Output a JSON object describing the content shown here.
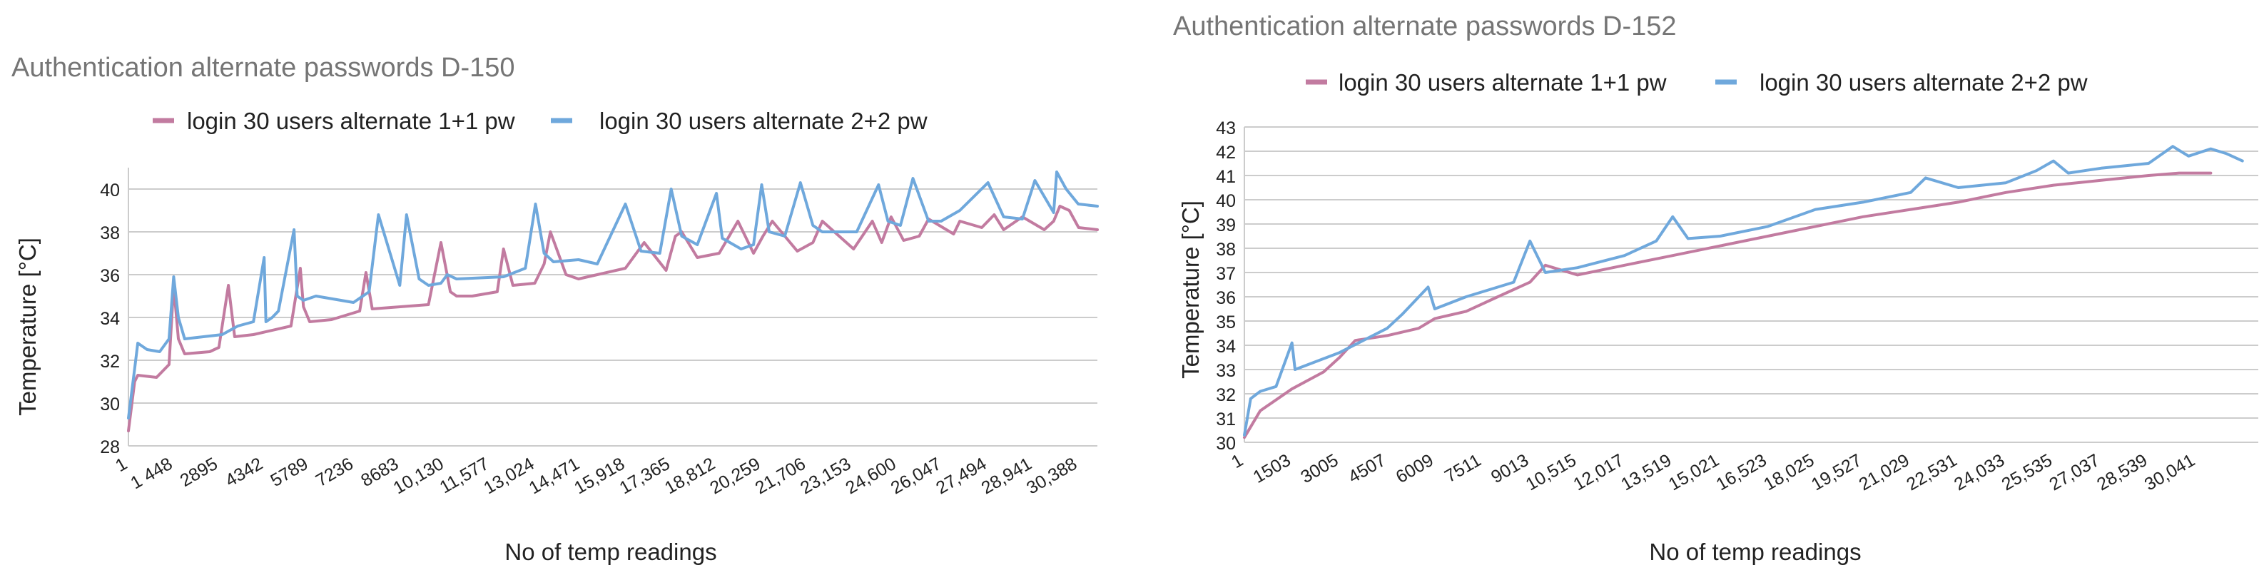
{
  "colors": {
    "series1": "#c27ba0",
    "series2": "#6fa8dc",
    "grid": "#cccccc",
    "title": "#757575",
    "text": "#222222"
  },
  "chart_data": [
    {
      "type": "line",
      "title": "Authentication alternate passwords D-150",
      "xlabel": "No of temp readings",
      "ylabel": "Temperature  [°C]",
      "ylim": [
        28,
        41
      ],
      "ytick_values": [
        28,
        30,
        32,
        34,
        36,
        38,
        40
      ],
      "ytick_labels": [
        "28",
        "30",
        "32",
        "34",
        "36",
        "38",
        "40"
      ],
      "xlim": [
        1,
        31000
      ],
      "xtick_values": [
        1,
        1448,
        2895,
        4342,
        5789,
        7236,
        8683,
        10130,
        11577,
        13024,
        14471,
        15918,
        17365,
        18812,
        20259,
        21706,
        23153,
        24600,
        26047,
        27494,
        28941,
        30388
      ],
      "xtick_labels": [
        "1",
        "1 448",
        "2895",
        "4342",
        "5789",
        "7236",
        "8683",
        "10,130",
        "11,577",
        "13,024",
        "14,471",
        "15,918",
        "17,365",
        "18,812",
        "20,259",
        "21,706",
        "23,153",
        "24,600",
        "26,047",
        "27,494",
        "28,941",
        "30,388"
      ],
      "legend": "top",
      "grid": true,
      "series": [
        {
          "name": "login 30 users alternate 1+1 pw",
          "x": [
            1,
            200,
            300,
            900,
            1300,
            1448,
            1600,
            1800,
            2600,
            2895,
            3200,
            3400,
            4000,
            5200,
            5500,
            5600,
            5800,
            6500,
            7400,
            7600,
            7800,
            9600,
            10000,
            10300,
            10500,
            11000,
            11800,
            12000,
            12300,
            13000,
            13300,
            13500,
            14000,
            14400,
            15000,
            15900,
            16500,
            17200,
            17500,
            17700,
            18200,
            18900,
            19500,
            20000,
            20300,
            20600,
            21400,
            21900,
            22200,
            23200,
            23800,
            24100,
            24400,
            24800,
            25300,
            25600,
            26400,
            26600,
            27300,
            27700,
            28000,
            28600,
            29300,
            29600,
            29800,
            30100,
            30400,
            31000
          ],
          "y": [
            28.7,
            31.0,
            31.3,
            31.2,
            31.8,
            35.5,
            33.0,
            32.3,
            32.4,
            32.6,
            35.5,
            33.1,
            33.2,
            33.6,
            36.3,
            34.5,
            33.8,
            33.9,
            34.3,
            36.1,
            34.4,
            34.6,
            37.5,
            35.2,
            35.0,
            35.0,
            35.2,
            37.2,
            35.5,
            35.6,
            36.5,
            38.0,
            36.0,
            35.8,
            36.0,
            36.3,
            37.5,
            36.2,
            37.8,
            38.0,
            36.8,
            37.0,
            38.5,
            37.0,
            37.8,
            38.5,
            37.1,
            37.5,
            38.5,
            37.2,
            38.5,
            37.5,
            38.7,
            37.6,
            37.8,
            38.6,
            37.9,
            38.5,
            38.2,
            38.8,
            38.1,
            38.7,
            38.1,
            38.5,
            39.2,
            39.0,
            38.2,
            38.1
          ]
        },
        {
          "name": "login 30 users alternate 2+2 pw",
          "x": [
            1,
            200,
            300,
            600,
            1000,
            1300,
            1448,
            1600,
            1800,
            3000,
            3500,
            4000,
            4342,
            4400,
            4600,
            4800,
            5300,
            5400,
            5600,
            6000,
            7200,
            7700,
            8000,
            8683,
            8900,
            9300,
            9600,
            10000,
            10200,
            10500,
            12000,
            12700,
            13024,
            13300,
            13600,
            14400,
            15000,
            15900,
            16400,
            17000,
            17365,
            17700,
            18200,
            18812,
            19000,
            19600,
            20000,
            20259,
            20500,
            21000,
            21500,
            21900,
            22200,
            23300,
            24000,
            24300,
            24700,
            25100,
            25600,
            26000,
            26600,
            27500,
            28000,
            28600,
            29000,
            29600,
            29700,
            30000,
            30388,
            31000
          ],
          "y": [
            29.3,
            31.6,
            32.8,
            32.5,
            32.4,
            33.0,
            35.9,
            34.0,
            33.0,
            33.2,
            33.6,
            33.8,
            36.8,
            33.8,
            34.0,
            34.3,
            38.1,
            35.0,
            34.8,
            35.0,
            34.7,
            35.2,
            38.8,
            35.5,
            38.8,
            35.8,
            35.5,
            35.6,
            36.0,
            35.8,
            35.9,
            36.3,
            39.3,
            37.0,
            36.6,
            36.7,
            36.5,
            39.3,
            37.1,
            37.0,
            40.0,
            37.8,
            37.4,
            39.8,
            37.7,
            37.2,
            37.4,
            40.2,
            38.0,
            37.8,
            40.3,
            38.3,
            38.0,
            38.0,
            40.2,
            38.5,
            38.3,
            40.5,
            38.5,
            38.5,
            39.0,
            40.3,
            38.7,
            38.6,
            40.4,
            38.9,
            40.8,
            40.0,
            39.3,
            39.2
          ]
        }
      ]
    },
    {
      "type": "line",
      "title": "Authentication alternate passwords D-152",
      "xlabel": "No of temp readings",
      "ylabel": "Temperature  [°C]",
      "ylim": [
        30,
        43
      ],
      "ytick_values": [
        30,
        31,
        32,
        33,
        34,
        35,
        36,
        37,
        38,
        39,
        40,
        41,
        42,
        43
      ],
      "ytick_labels": [
        "30",
        "31",
        "32",
        "33",
        "34",
        "35",
        "36",
        "37",
        "38",
        "39",
        "40",
        "41",
        "42",
        "43"
      ],
      "xlim": [
        1,
        32000
      ],
      "xtick_values": [
        1,
        1503,
        3005,
        4507,
        6009,
        7511,
        9013,
        10515,
        12017,
        13519,
        15021,
        16523,
        18025,
        19527,
        21029,
        22531,
        24033,
        25535,
        27037,
        28539,
        30041
      ],
      "xtick_labels": [
        "1",
        "1503",
        "3005",
        "4507",
        "6009",
        "7511",
        "9013",
        "10,515",
        "12,017",
        "13,519",
        "15,021",
        "16,523",
        "18,025",
        "19,527",
        "21,029",
        "22,531",
        "24,033",
        "25,535",
        "27,037",
        "28,539",
        "30,041"
      ],
      "legend": "top",
      "grid": true,
      "series": [
        {
          "name": "login 30 users alternate 1+1 pw",
          "x": [
            1,
            500,
            1500,
            2500,
            3005,
            3500,
            4507,
            5500,
            6009,
            7000,
            8000,
            9013,
            9500,
            10515,
            12000,
            13519,
            15021,
            16523,
            18025,
            19527,
            21029,
            22531,
            24033,
            25535,
            27037,
            28539,
            29500,
            30500
          ],
          "y": [
            30.2,
            31.3,
            32.2,
            32.9,
            33.5,
            34.2,
            34.4,
            34.7,
            35.1,
            35.4,
            36.0,
            36.6,
            37.3,
            36.9,
            37.3,
            37.7,
            38.1,
            38.5,
            38.9,
            39.3,
            39.6,
            39.9,
            40.3,
            40.6,
            40.8,
            41.0,
            41.1,
            41.1
          ]
        },
        {
          "name": "login 30 users alternate 2+2 pw",
          "x": [
            1,
            200,
            500,
            1000,
            1503,
            1600,
            1800,
            3005,
            4507,
            5000,
            5800,
            6009,
            7000,
            8500,
            9013,
            9500,
            10515,
            12000,
            13000,
            13519,
            14000,
            15021,
            16523,
            18025,
            19527,
            21029,
            21500,
            22531,
            24033,
            25000,
            25535,
            26000,
            27037,
            28539,
            29300,
            29800,
            30500,
            31000,
            31500
          ],
          "y": [
            30.3,
            31.8,
            32.1,
            32.3,
            34.1,
            33.0,
            33.1,
            33.7,
            34.7,
            35.3,
            36.4,
            35.5,
            36.0,
            36.6,
            38.3,
            37.0,
            37.2,
            37.7,
            38.3,
            39.3,
            38.4,
            38.5,
            38.9,
            39.6,
            39.9,
            40.3,
            40.9,
            40.5,
            40.7,
            41.2,
            41.6,
            41.1,
            41.3,
            41.5,
            42.2,
            41.8,
            42.1,
            41.9,
            41.6
          ]
        }
      ]
    }
  ]
}
